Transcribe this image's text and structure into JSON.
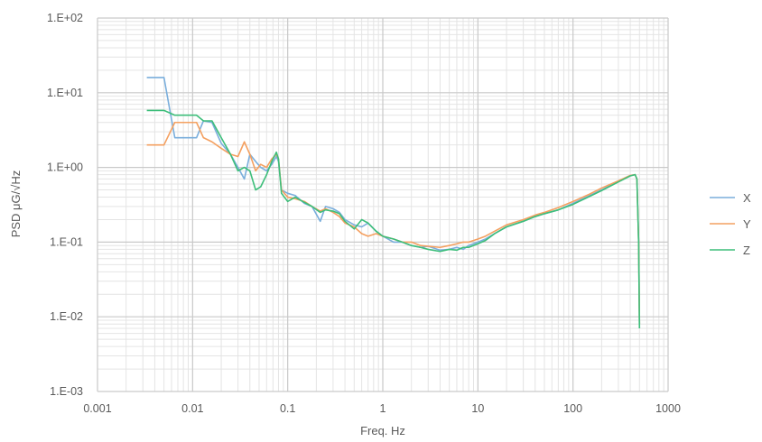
{
  "chart_data": {
    "type": "line",
    "title": "",
    "xlabel": "Freq. Hz",
    "ylabel": "PSD μG/√Hz",
    "x_scale": "log",
    "y_scale": "log",
    "xlim": [
      0.001,
      1000
    ],
    "ylim": [
      0.001,
      100
    ],
    "x_ticks": [
      {
        "value": 0.001,
        "label": "0.001"
      },
      {
        "value": 0.01,
        "label": "0.01"
      },
      {
        "value": 0.1,
        "label": "0.1"
      },
      {
        "value": 1,
        "label": "1"
      },
      {
        "value": 10,
        "label": "10"
      },
      {
        "value": 100,
        "label": "100"
      },
      {
        "value": 1000,
        "label": "1000"
      }
    ],
    "y_ticks": [
      {
        "value": 0.001,
        "label": "1.E-03"
      },
      {
        "value": 0.01,
        "label": "1.E-02"
      },
      {
        "value": 0.1,
        "label": "1.E-01"
      },
      {
        "value": 1,
        "label": "1.E+00"
      },
      {
        "value": 10,
        "label": "1.E+01"
      },
      {
        "value": 100,
        "label": "1.E+02"
      }
    ],
    "grid": true,
    "legend_position": "right",
    "series": [
      {
        "name": "X",
        "color": "#7aaedc",
        "points": [
          [
            0.0033,
            16
          ],
          [
            0.005,
            16
          ],
          [
            0.0065,
            2.5
          ],
          [
            0.011,
            2.5
          ],
          [
            0.013,
            4.2
          ],
          [
            0.016,
            4.0
          ],
          [
            0.02,
            2.1
          ],
          [
            0.025,
            1.5
          ],
          [
            0.03,
            1.0
          ],
          [
            0.035,
            0.7
          ],
          [
            0.04,
            1.5
          ],
          [
            0.046,
            1.2
          ],
          [
            0.052,
            1.0
          ],
          [
            0.06,
            0.9
          ],
          [
            0.068,
            1.1
          ],
          [
            0.076,
            1.4
          ],
          [
            0.08,
            1.2
          ],
          [
            0.086,
            0.5
          ],
          [
            0.1,
            0.45
          ],
          [
            0.12,
            0.42
          ],
          [
            0.15,
            0.33
          ],
          [
            0.18,
            0.3
          ],
          [
            0.22,
            0.19
          ],
          [
            0.25,
            0.3
          ],
          [
            0.3,
            0.28
          ],
          [
            0.35,
            0.25
          ],
          [
            0.4,
            0.2
          ],
          [
            0.5,
            0.17
          ],
          [
            0.6,
            0.16
          ],
          [
            0.7,
            0.18
          ],
          [
            0.85,
            0.14
          ],
          [
            1.0,
            0.12
          ],
          [
            1.3,
            0.1
          ],
          [
            1.6,
            0.1
          ],
          [
            2.0,
            0.09
          ],
          [
            2.5,
            0.085
          ],
          [
            3.0,
            0.088
          ],
          [
            4.0,
            0.078
          ],
          [
            5.0,
            0.08
          ],
          [
            6.0,
            0.085
          ],
          [
            7.0,
            0.08
          ],
          [
            8.0,
            0.09
          ],
          [
            10,
            0.1
          ],
          [
            12,
            0.11
          ],
          [
            15,
            0.13
          ],
          [
            20,
            0.16
          ],
          [
            30,
            0.19
          ],
          [
            40,
            0.22
          ],
          [
            50,
            0.24
          ],
          [
            70,
            0.27
          ],
          [
            100,
            0.33
          ],
          [
            150,
            0.42
          ],
          [
            200,
            0.5
          ],
          [
            300,
            0.65
          ],
          [
            400,
            0.78
          ],
          [
            450,
            0.8
          ],
          [
            470,
            0.7
          ],
          [
            490,
            0.1
          ],
          [
            500,
            0.008
          ]
        ]
      },
      {
        "name": "Y",
        "color": "#f4a060",
        "points": [
          [
            0.0033,
            2.0
          ],
          [
            0.005,
            2.0
          ],
          [
            0.0065,
            4.0
          ],
          [
            0.008,
            4.0
          ],
          [
            0.011,
            4.0
          ],
          [
            0.013,
            2.5
          ],
          [
            0.016,
            2.2
          ],
          [
            0.02,
            1.8
          ],
          [
            0.025,
            1.5
          ],
          [
            0.03,
            1.4
          ],
          [
            0.035,
            2.2
          ],
          [
            0.04,
            1.5
          ],
          [
            0.046,
            0.9
          ],
          [
            0.052,
            1.1
          ],
          [
            0.06,
            1.0
          ],
          [
            0.068,
            1.3
          ],
          [
            0.076,
            1.5
          ],
          [
            0.08,
            1.3
          ],
          [
            0.086,
            0.5
          ],
          [
            0.1,
            0.4
          ],
          [
            0.12,
            0.38
          ],
          [
            0.15,
            0.35
          ],
          [
            0.18,
            0.3
          ],
          [
            0.22,
            0.26
          ],
          [
            0.25,
            0.28
          ],
          [
            0.3,
            0.25
          ],
          [
            0.35,
            0.22
          ],
          [
            0.4,
            0.18
          ],
          [
            0.5,
            0.16
          ],
          [
            0.6,
            0.13
          ],
          [
            0.7,
            0.12
          ],
          [
            0.85,
            0.13
          ],
          [
            1.0,
            0.12
          ],
          [
            1.3,
            0.11
          ],
          [
            1.6,
            0.1
          ],
          [
            2.0,
            0.1
          ],
          [
            2.5,
            0.09
          ],
          [
            3.0,
            0.088
          ],
          [
            4.0,
            0.085
          ],
          [
            5.0,
            0.09
          ],
          [
            6.0,
            0.095
          ],
          [
            7.0,
            0.1
          ],
          [
            8.0,
            0.1
          ],
          [
            10,
            0.11
          ],
          [
            12,
            0.12
          ],
          [
            15,
            0.14
          ],
          [
            20,
            0.17
          ],
          [
            30,
            0.2
          ],
          [
            40,
            0.23
          ],
          [
            50,
            0.25
          ],
          [
            70,
            0.29
          ],
          [
            100,
            0.35
          ],
          [
            150,
            0.44
          ],
          [
            200,
            0.53
          ],
          [
            300,
            0.66
          ],
          [
            400,
            0.78
          ],
          [
            450,
            0.8
          ],
          [
            470,
            0.7
          ],
          [
            490,
            0.1
          ],
          [
            500,
            0.008
          ]
        ]
      },
      {
        "name": "Z",
        "color": "#3dbe7a",
        "points": [
          [
            0.0033,
            5.8
          ],
          [
            0.005,
            5.8
          ],
          [
            0.0065,
            5.0
          ],
          [
            0.008,
            5.0
          ],
          [
            0.011,
            5.0
          ],
          [
            0.013,
            4.2
          ],
          [
            0.016,
            4.2
          ],
          [
            0.02,
            2.5
          ],
          [
            0.025,
            1.5
          ],
          [
            0.03,
            0.9
          ],
          [
            0.035,
            1.0
          ],
          [
            0.04,
            0.9
          ],
          [
            0.046,
            0.5
          ],
          [
            0.052,
            0.55
          ],
          [
            0.06,
            0.8
          ],
          [
            0.068,
            1.2
          ],
          [
            0.076,
            1.6
          ],
          [
            0.08,
            1.3
          ],
          [
            0.086,
            0.45
          ],
          [
            0.1,
            0.35
          ],
          [
            0.12,
            0.4
          ],
          [
            0.15,
            0.34
          ],
          [
            0.18,
            0.3
          ],
          [
            0.22,
            0.25
          ],
          [
            0.25,
            0.27
          ],
          [
            0.3,
            0.26
          ],
          [
            0.35,
            0.24
          ],
          [
            0.4,
            0.19
          ],
          [
            0.5,
            0.15
          ],
          [
            0.6,
            0.2
          ],
          [
            0.7,
            0.18
          ],
          [
            0.85,
            0.14
          ],
          [
            1.0,
            0.12
          ],
          [
            1.3,
            0.11
          ],
          [
            1.6,
            0.1
          ],
          [
            2.0,
            0.09
          ],
          [
            2.5,
            0.085
          ],
          [
            3.0,
            0.08
          ],
          [
            4.0,
            0.075
          ],
          [
            5.0,
            0.08
          ],
          [
            6.0,
            0.078
          ],
          [
            7.0,
            0.085
          ],
          [
            8.0,
            0.085
          ],
          [
            10,
            0.095
          ],
          [
            12,
            0.105
          ],
          [
            15,
            0.13
          ],
          [
            20,
            0.16
          ],
          [
            30,
            0.19
          ],
          [
            40,
            0.22
          ],
          [
            50,
            0.24
          ],
          [
            70,
            0.27
          ],
          [
            100,
            0.32
          ],
          [
            150,
            0.41
          ],
          [
            200,
            0.49
          ],
          [
            300,
            0.64
          ],
          [
            400,
            0.77
          ],
          [
            450,
            0.8
          ],
          [
            470,
            0.7
          ],
          [
            490,
            0.1
          ],
          [
            500,
            0.007
          ]
        ]
      }
    ]
  }
}
